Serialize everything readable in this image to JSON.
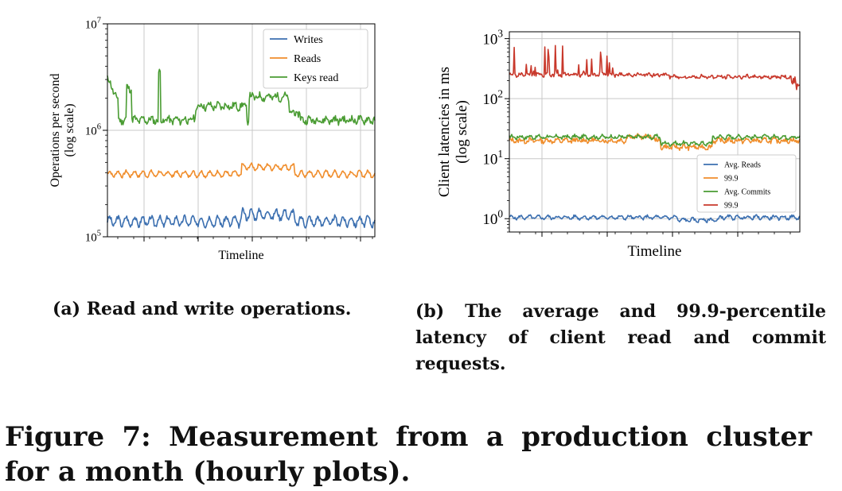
{
  "charts": [
    {
      "type": "line",
      "xlabel": "Timeline",
      "ylabel": [
        "Operations per second",
        "(log scale)"
      ],
      "yscale": "log",
      "ylim": [
        100000,
        10000000
      ],
      "ytick_labels": [
        "10⁵",
        "10⁶",
        "10⁷"
      ],
      "ytick_values": [
        100000,
        1000000,
        10000000
      ],
      "x_range": [
        0,
        720
      ],
      "grid": true,
      "legend": "top-right",
      "series": [
        {
          "name": "Writes",
          "color": "#3b6fb0",
          "base": 140000,
          "amp": 0.1,
          "noise": 0.05,
          "seed": 3
        },
        {
          "name": "Reads",
          "color": "#f08d2b",
          "base": 390000,
          "amp": 0.06,
          "noise": 0.03,
          "seed": 7
        },
        {
          "name": "Keys read",
          "color": "#4a9c33",
          "base": 1250000,
          "amp": 0.05,
          "noise": 0.07,
          "seed": 11
        }
      ]
    },
    {
      "type": "line",
      "xlabel": "Timeline",
      "ylabel": [
        "Client latencies in ms",
        "(log scale)"
      ],
      "yscale": "log",
      "ylim": [
        0.6,
        1300
      ],
      "ytick_labels": [
        "10⁰",
        "10¹",
        "10²",
        "10³"
      ],
      "ytick_values": [
        1,
        10,
        100,
        1000
      ],
      "x_range": [
        0,
        720
      ],
      "grid": true,
      "legend": "lower-right",
      "series": [
        {
          "name": "Avg. Reads",
          "color": "#3b6fb0",
          "base": 1.05,
          "amp": 0.06,
          "noise": 0.05,
          "seed": 5
        },
        {
          "name": "99.9",
          "color": "#f08d2b",
          "base": 20,
          "amp": 0.05,
          "noise": 0.08,
          "seed": 13
        },
        {
          "name": "Avg. Commits",
          "color": "#4a9c33",
          "base": 23,
          "amp": 0.05,
          "noise": 0.06,
          "seed": 17
        },
        {
          "name": "99.9",
          "color": "#c8382b",
          "base": 250,
          "amp": 0.04,
          "noise": 0.06,
          "seed": 19
        }
      ]
    }
  ],
  "captions": {
    "a": "(a) Read and write operations.",
    "b": "(b) The average and 99.9-percentile latency of client read and commit requests.",
    "figure": "Figure 7: Measurement from a production cluster for a month (hourly plots)."
  }
}
